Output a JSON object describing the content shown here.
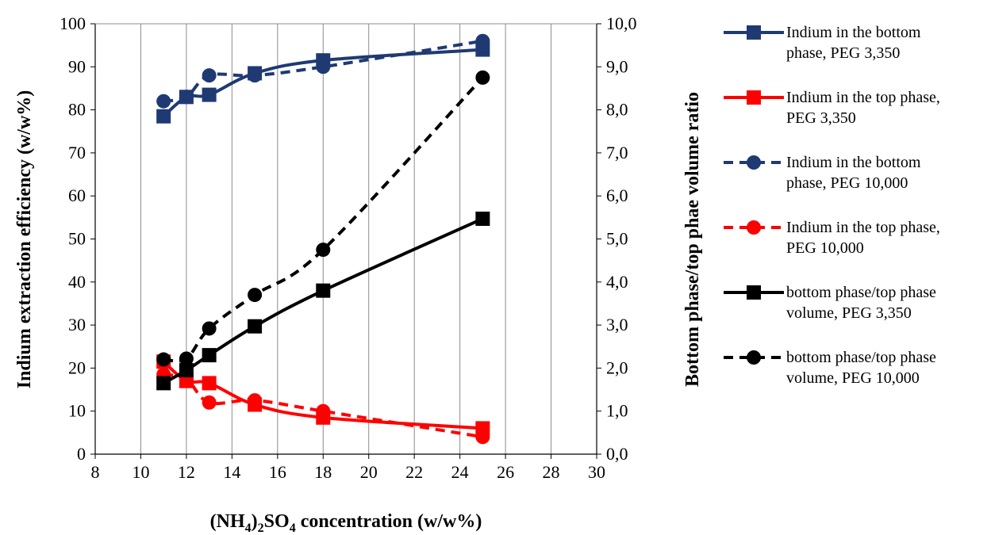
{
  "chart_data": {
    "type": "line",
    "xlabel": "(NH4)2SO4 concentration (w/w%)",
    "ylabel": "Indium extraction efficiency (w/w%)",
    "y2label": "Bottom phase/top phae volume ratio",
    "xlim": [
      8,
      30
    ],
    "ylim": [
      0,
      100
    ],
    "y2lim": [
      0,
      10
    ],
    "xticks": [
      "8",
      "10",
      "12",
      "14",
      "16",
      "18",
      "20",
      "22",
      "24",
      "26",
      "28",
      "30"
    ],
    "yticks": [
      "0",
      "10",
      "20",
      "30",
      "40",
      "50",
      "60",
      "70",
      "80",
      "90",
      "100"
    ],
    "y2ticks": [
      "0,0",
      "1,0",
      "2,0",
      "3,0",
      "4,0",
      "5,0",
      "6,0",
      "7,0",
      "8,0",
      "9,0",
      "10,0"
    ],
    "grid": "x-major",
    "legend_position": "right",
    "series": [
      {
        "name": "Indium in the bottom phase, PEG 3,350",
        "legend_lines": [
          "Indium in the bottom",
          "phase, PEG 3,350"
        ],
        "axis": "left",
        "color": "#1f3a73",
        "dash": "solid",
        "marker": "square",
        "x": [
          11,
          12,
          13,
          15,
          18,
          25
        ],
        "y": [
          78.5,
          83,
          83.5,
          88.5,
          91.5,
          94
        ]
      },
      {
        "name": "Indium in the top phase, PEG 3,350",
        "legend_lines": [
          "Indium in the top phase,",
          "PEG 3,350"
        ],
        "axis": "left",
        "color": "#ff0000",
        "dash": "solid",
        "marker": "square",
        "x": [
          11,
          12,
          13,
          15,
          18,
          25
        ],
        "y": [
          21.5,
          17,
          16.5,
          11.5,
          8.5,
          6
        ]
      },
      {
        "name": "Indium in the bottom phase, PEG 10,000",
        "legend_lines": [
          "Indium in the bottom",
          "phase, PEG 10,000"
        ],
        "axis": "left",
        "color": "#1f3a73",
        "dash": "dashed",
        "marker": "circle",
        "x": [
          11,
          12,
          13,
          15,
          18,
          25
        ],
        "y": [
          82,
          83,
          88,
          88,
          90,
          96
        ]
      },
      {
        "name": "Indium in the top phase, PEG 10,000",
        "legend_lines": [
          "Indium in the top phase,",
          "PEG 10,000"
        ],
        "axis": "left",
        "color": "#ff0000",
        "dash": "dashed",
        "marker": "circle",
        "x": [
          11,
          12,
          13,
          15,
          18,
          25
        ],
        "y": [
          18.5,
          17.5,
          12,
          12.5,
          10,
          4
        ]
      },
      {
        "name": "bottom phase/top phase volume, PEG 3,350",
        "legend_lines": [
          "bottom phase/top phase",
          "volume, PEG 3,350"
        ],
        "axis": "right",
        "color": "#000000",
        "dash": "solid",
        "marker": "square",
        "x": [
          11,
          12,
          13,
          15,
          18,
          25
        ],
        "y": [
          1.65,
          1.95,
          2.3,
          2.97,
          3.8,
          5.47
        ]
      },
      {
        "name": "bottom phase/top phase volume, PEG 10,000",
        "legend_lines": [
          "bottom phase/top phase",
          "volume, PEG 10,000"
        ],
        "axis": "right",
        "color": "#000000",
        "dash": "dashed",
        "marker": "circle",
        "x": [
          11,
          12,
          13,
          15,
          18,
          25
        ],
        "y": [
          2.2,
          2.22,
          2.92,
          3.7,
          4.75,
          8.75
        ]
      }
    ]
  }
}
